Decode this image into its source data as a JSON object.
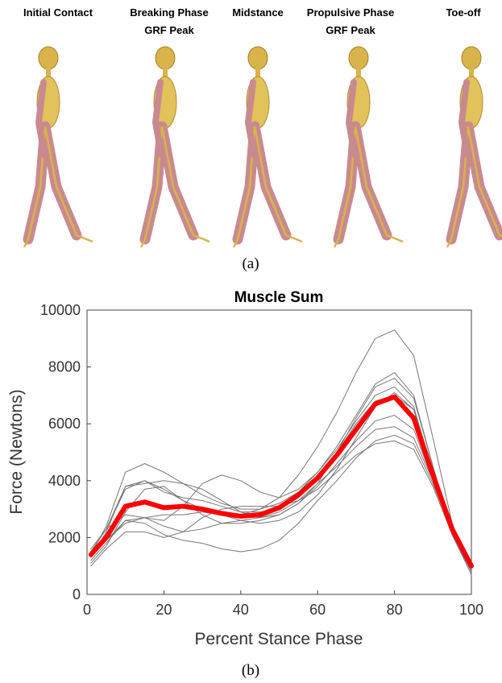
{
  "figure": {
    "phases": [
      [
        "Initial Contact"
      ],
      [
        "Breaking Phase",
        "GRF Peak"
      ],
      [
        "Midstance"
      ],
      [
        "Propulsive Phase",
        "GRF Peak"
      ],
      [
        "Toe-off"
      ]
    ],
    "caption_a": "(a)",
    "caption_b": "(b)"
  },
  "chart_data": {
    "type": "line",
    "title": "Muscle Sum",
    "x_label": "Percent Stance Phase",
    "y_label": "Force (Newtons)",
    "x": [
      1,
      5,
      10,
      15,
      20,
      25,
      30,
      35,
      40,
      45,
      50,
      55,
      60,
      65,
      70,
      75,
      80,
      85,
      90,
      95,
      100
    ],
    "xlim": [
      0,
      100
    ],
    "xticks": [
      0,
      20,
      40,
      60,
      80,
      100
    ],
    "ylim": [
      0,
      10000
    ],
    "yticks": [
      0,
      2000,
      4000,
      6000,
      8000,
      10000
    ],
    "series": [
      {
        "color": "#777777",
        "values": [
          1300,
          2200,
          3800,
          4000,
          3700,
          3300,
          3000,
          2900,
          2800,
          3000,
          3400,
          4200,
          5200,
          6400,
          7800,
          9000,
          9300,
          8400,
          5500,
          2500,
          800
        ]
      },
      {
        "color": "#777777",
        "values": [
          1400,
          2400,
          4300,
          4600,
          4300,
          3900,
          3500,
          3200,
          3000,
          3000,
          3200,
          3600,
          4300,
          5200,
          6300,
          7400,
          7800,
          7000,
          4500,
          2200,
          900
        ]
      },
      {
        "color": "#777777",
        "values": [
          1500,
          2300,
          3800,
          3900,
          4000,
          3900,
          3700,
          3300,
          2900,
          2700,
          2800,
          3200,
          3900,
          5000,
          6200,
          7300,
          7600,
          6900,
          4500,
          2200,
          900
        ]
      },
      {
        "color": "#777777",
        "values": [
          1200,
          1800,
          2600,
          2700,
          2600,
          3100,
          3900,
          4200,
          4000,
          3600,
          3400,
          3700,
          4300,
          5100,
          6100,
          7000,
          7300,
          6600,
          4300,
          2100,
          800
        ]
      },
      {
        "color": "#777777",
        "values": [
          1400,
          1900,
          2500,
          2700,
          2800,
          2800,
          2900,
          2800,
          2600,
          2500,
          2600,
          2900,
          3500,
          4400,
          5500,
          6600,
          7100,
          6500,
          4300,
          2100,
          900
        ]
      },
      {
        "color": "#777777",
        "values": [
          1100,
          1700,
          2900,
          3700,
          3800,
          3300,
          2800,
          2500,
          2500,
          2600,
          2800,
          3200,
          3800,
          4600,
          5400,
          6100,
          6300,
          5800,
          4000,
          2100,
          800
        ]
      },
      {
        "color": "#777777",
        "values": [
          1600,
          2300,
          2800,
          2700,
          2400,
          2200,
          2300,
          2500,
          2600,
          2700,
          2900,
          3300,
          3900,
          4500,
          5200,
          5800,
          5900,
          5500,
          4000,
          2200,
          1000
        ]
      },
      {
        "color": "#777777",
        "values": [
          1300,
          1900,
          2600,
          2500,
          2100,
          1900,
          1800,
          1600,
          1500,
          1600,
          1900,
          2500,
          3300,
          4000,
          4800,
          5400,
          5600,
          5300,
          3900,
          2200,
          900
        ]
      },
      {
        "color": "#777777",
        "values": [
          1000,
          1600,
          2200,
          2200,
          2000,
          2200,
          2700,
          3000,
          3100,
          3100,
          3100,
          3300,
          3700,
          4300,
          4900,
          5300,
          5400,
          5100,
          3800,
          2100,
          700
        ]
      },
      {
        "color": "#777777",
        "values": [
          1500,
          2300,
          3700,
          4000,
          3600,
          3400,
          3300,
          3100,
          2900,
          2900,
          3000,
          3400,
          4100,
          5000,
          6000,
          6800,
          7000,
          6500,
          4400,
          2200,
          1000
        ]
      },
      {
        "color": "#ff0000",
        "width": 6,
        "values": [
          1400,
          2000,
          3100,
          3250,
          3050,
          3100,
          3000,
          2850,
          2750,
          2800,
          3050,
          3500,
          4100,
          4900,
          5800,
          6700,
          6950,
          6200,
          4200,
          2300,
          1000
        ]
      }
    ]
  }
}
